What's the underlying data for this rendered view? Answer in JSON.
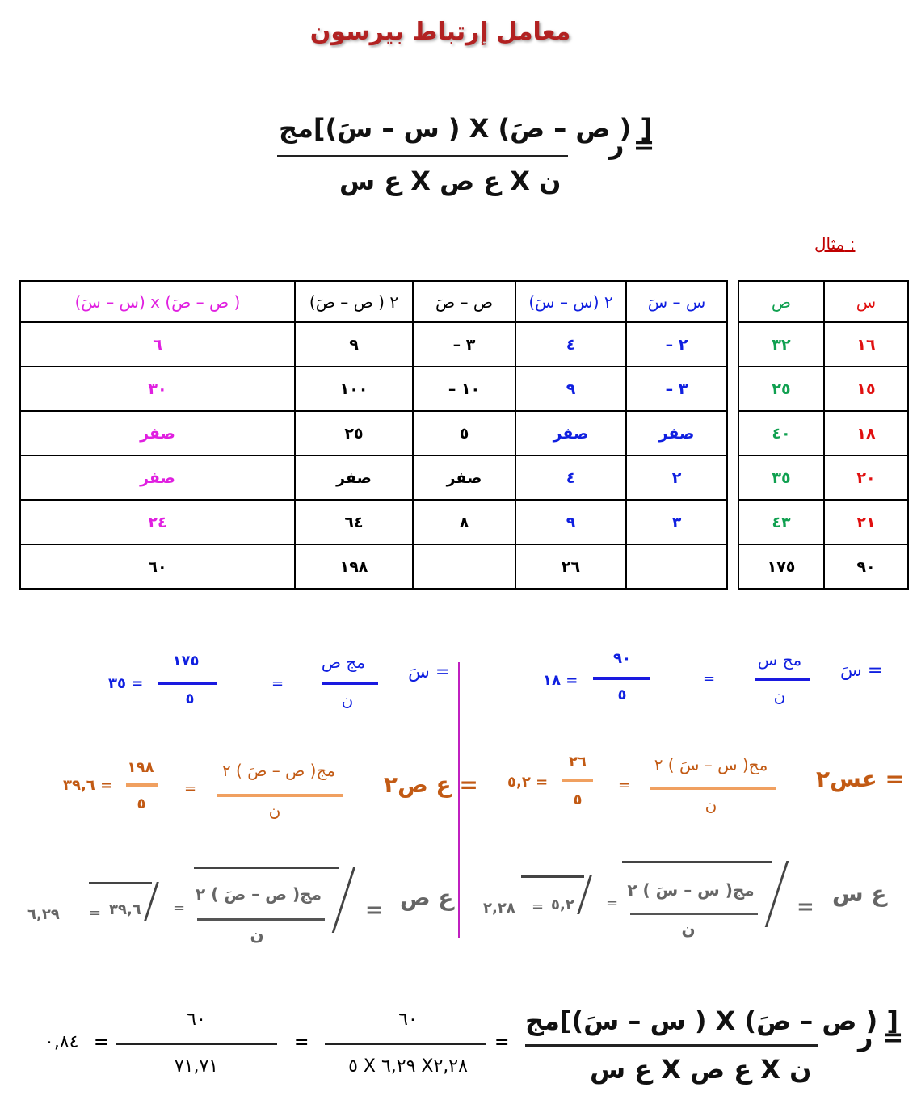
{
  "title": "معامل إرتباط بيرسون",
  "formula": {
    "lhs": "ر =",
    "numerator": "مج[(س – سَ ) X (ص – صَ ) ]",
    "denominator": "ع س X ع ص X ن"
  },
  "example_label": "مثال :",
  "table": {
    "right_headers": [
      "س",
      "ص"
    ],
    "right_rows": [
      [
        "١٦",
        "٣٢"
      ],
      [
        "١٥",
        "٢٥"
      ],
      [
        "١٨",
        "٤٠"
      ],
      [
        "٢٠",
        "٣٥"
      ],
      [
        "٢١",
        "٤٣"
      ],
      [
        "٩٠",
        "١٧٥"
      ]
    ],
    "left_headers": [
      "س – سَ",
      "(س – سَ) ٢",
      "ص – صَ",
      "(ص – صَ ) ٢",
      "(س – سَ) x (ص – صَ )"
    ],
    "left_rows": [
      [
        "– ٢",
        "٤",
        "– ٣",
        "٩",
        "٦"
      ],
      [
        "– ٣",
        "٩",
        "– ١٠",
        "١٠٠",
        "٣٠"
      ],
      [
        "صفر",
        "صفر",
        "٥",
        "٢٥",
        "صفر"
      ],
      [
        "٢",
        "٤",
        "صفر",
        "صفر",
        "صفر"
      ],
      [
        "٣",
        "٩",
        "٨",
        "٦٤",
        "٢٤"
      ],
      [
        "",
        "٢٦",
        "",
        "١٩٨",
        "٦٠"
      ]
    ]
  },
  "mean_x": {
    "lhs": "سَ =",
    "num": "مج س",
    "den": "ن",
    "eq": "=",
    "fnum": "٩٠",
    "fden": "٥",
    "res": "١٨ ="
  },
  "mean_y": {
    "lhs": "سَ =",
    "num": "مج ص",
    "den": "ن",
    "eq": "=",
    "fnum": "١٧٥",
    "fden": "٥",
    "res": "٣٥ ="
  },
  "var_x": {
    "lhs": "عس٢ =",
    "num": "مج( س – سَ ) ٢",
    "den": "ن",
    "eq": "=",
    "fnum": "٢٦",
    "fden": "٥",
    "res": "٥,٢ ="
  },
  "var_y": {
    "lhs": "ع ص٢ =",
    "num": "مج( ص – صَ ) ٢",
    "den": "ن",
    "eq": "=",
    "fnum": "١٩٨",
    "fden": "٥",
    "res": "٣٩,٦ ="
  },
  "sd_x": {
    "lhs": "ع س",
    "eq1": "=",
    "num": "مج( س – سَ ) ٢",
    "den": "ن",
    "eq2": "=",
    "rad": "٥,٢",
    "eq3": "=",
    "res": "٢,٢٨"
  },
  "sd_y": {
    "lhs": "ع ص",
    "eq1": "=",
    "num": "مج( ص – صَ ) ٢",
    "den": "ن",
    "eq2": "=",
    "rad": "٣٩,٦",
    "eq3": "=",
    "res": "٦,٢٩"
  },
  "final": {
    "lhs": "ر =",
    "num": "مج[(س – سَ ) X (ص – صَ ) ]",
    "den": "ع س X ع ص X ن",
    "eq1": "=",
    "num2": "٦٠",
    "den2": "٥ X ٦,٢٩ X٢,٢٨",
    "eq2": "=",
    "num3": "٦٠",
    "den3": "٧١,٧١",
    "eq3": "=",
    "res": "٠,٨٤"
  }
}
